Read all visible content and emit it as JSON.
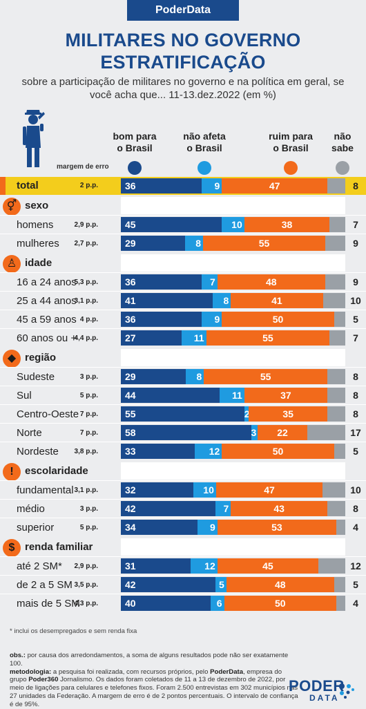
{
  "brand": "PoderData",
  "title_line1": "MILITARES NO GOVERNO",
  "title_line2": "ESTRATIFICAÇÃO",
  "subtitle": "sobre a participação de militares no governo e na política em geral, se você acha que... 11-13.dez.2022 (em %)",
  "margin_header": "margem de erro",
  "chart_data": {
    "type": "bar",
    "stacked": true,
    "orientation": "horizontal",
    "unit": "%",
    "series": [
      {
        "name": "bom para o Brasil",
        "color": "#1a4a8c"
      },
      {
        "name": "não afeta o Brasil",
        "color": "#1f9be0"
      },
      {
        "name": "ruim para o Brasil",
        "color": "#f26a1b"
      },
      {
        "name": "não sabe",
        "color": "#9aa0a6"
      }
    ],
    "column_headers": [
      {
        "line1": "bom para",
        "line2": "o Brasil"
      },
      {
        "line1": "não afeta",
        "line2": "o Brasil"
      },
      {
        "line1": "ruim para",
        "line2": "o Brasil"
      },
      {
        "line1": "não",
        "line2": "sabe"
      }
    ],
    "total": {
      "label": "total",
      "moe": "2 p.p.",
      "values": [
        36,
        9,
        47,
        8
      ]
    },
    "groups": [
      {
        "label": "sexo",
        "icon": "gender-icon",
        "rows": [
          {
            "label": "homens",
            "moe": "2,9 p.p.",
            "values": [
              45,
              10,
              38,
              7
            ]
          },
          {
            "label": "mulheres",
            "moe": "2,7 p.p.",
            "values": [
              29,
              8,
              55,
              9
            ]
          }
        ]
      },
      {
        "label": "idade",
        "icon": "person-icon",
        "rows": [
          {
            "label": "16 a 24 anos",
            "moe": "5,3 p.p.",
            "values": [
              36,
              7,
              48,
              9
            ]
          },
          {
            "label": "25 a 44 anos",
            "moe": "3,1 p.p.",
            "values": [
              41,
              8,
              41,
              10
            ]
          },
          {
            "label": "45 a 59 anos",
            "moe": "4 p.p.",
            "values": [
              36,
              9,
              50,
              5
            ]
          },
          {
            "label": "60 anos ou +",
            "moe": "4,4 p.p.",
            "values": [
              27,
              11,
              55,
              7
            ]
          }
        ]
      },
      {
        "label": "região",
        "icon": "brazil-map-icon",
        "rows": [
          {
            "label": "Sudeste",
            "moe": "3 p.p.",
            "values": [
              29,
              8,
              55,
              8
            ]
          },
          {
            "label": "Sul",
            "moe": "5 p.p.",
            "values": [
              44,
              11,
              37,
              8
            ]
          },
          {
            "label": "Centro-Oeste",
            "moe": "7 p.p.",
            "values": [
              55,
              2,
              35,
              8
            ]
          },
          {
            "label": "Norte",
            "moe": "7 p.p.",
            "values": [
              58,
              3,
              22,
              17
            ]
          },
          {
            "label": "Nordeste",
            "moe": "3,8 p.p.",
            "values": [
              33,
              12,
              50,
              5
            ]
          }
        ]
      },
      {
        "label": "escolaridade",
        "icon": "exclamation-icon",
        "rows": [
          {
            "label": "fundamental",
            "moe": "3,1 p.p.",
            "values": [
              32,
              10,
              47,
              10
            ]
          },
          {
            "label": "médio",
            "moe": "3 p.p.",
            "values": [
              42,
              7,
              43,
              8
            ]
          },
          {
            "label": "superior",
            "moe": "5 p.p.",
            "values": [
              34,
              9,
              53,
              4
            ]
          }
        ]
      },
      {
        "label": "renda familiar",
        "icon": "dollar-icon",
        "rows": [
          {
            "label": "até 2 SM*",
            "moe": "2,9 p.p.",
            "values": [
              31,
              12,
              45,
              12
            ]
          },
          {
            "label": "de 2 a 5 SM",
            "moe": "3,5 p.p.",
            "values": [
              42,
              5,
              48,
              5
            ]
          },
          {
            "label": "mais de 5 SM",
            "moe": "4,3 p.p.",
            "values": [
              40,
              6,
              50,
              4
            ]
          }
        ]
      }
    ]
  },
  "footnote": "* inclui os desempregados e sem renda fixa",
  "obs_label": "obs.:",
  "obs_text": " por causa dos arredondamentos, a soma de alguns resultados pode não ser exatamente 100.",
  "method_label": "metodologia:",
  "method_text_1": " a pesquisa foi realizada, com recursos próprios, pelo ",
  "method_brand_1": "PoderData",
  "method_text_2": ", empresa do grupo ",
  "method_brand_2": "Poder360",
  "method_text_3": " Jornalismo. Os dados foram coletados de 11 a 13 de dezembro de 2022, por meio de ligações para celulares e telefones fixos. Foram 2.500 entrevistas em 302 municípios nas 27 unidades da Federação. A margem de erro é de 2 pontos percentuais. O intervalo de confiança é de 95%.",
  "logo_top": "PODER",
  "logo_bottom": "DATA"
}
